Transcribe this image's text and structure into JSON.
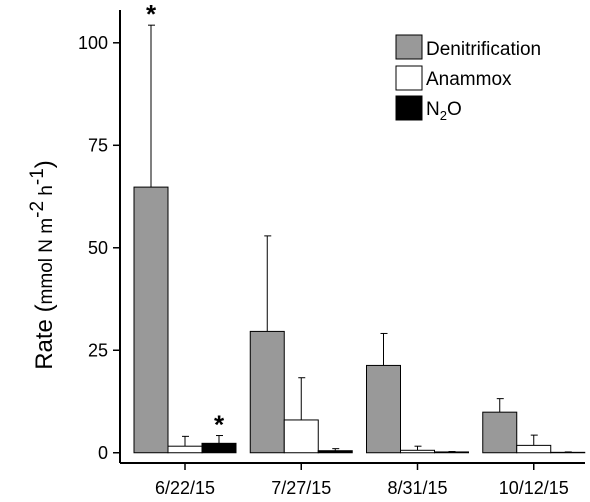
{
  "chart_data": {
    "type": "bar",
    "categories": [
      "6/22/15",
      "7/27/15",
      "8/31/15",
      "10/12/15"
    ],
    "series": [
      {
        "name": "Denitrification",
        "color": "#999999",
        "values": [
          64.8,
          29.6,
          21.3,
          9.9
        ],
        "errors": [
          39.5,
          23.3,
          7.8,
          3.3
        ]
      },
      {
        "name": "Anammox",
        "color": "#ffffff",
        "values": [
          1.6,
          8.0,
          0.6,
          1.8
        ],
        "errors": [
          2.4,
          10.3,
          1.0,
          2.5
        ]
      },
      {
        "name": "N2O",
        "color": "#000000",
        "values": [
          2.3,
          0.5,
          0.2,
          0.1
        ],
        "errors": [
          1.9,
          0.5,
          0.1,
          0.1
        ]
      }
    ],
    "significance_marks": [
      {
        "category": "6/22/15",
        "series": "Denitrification",
        "label": "*"
      },
      {
        "category": "6/22/15",
        "series": "N2O",
        "label": "*"
      }
    ],
    "ylabel": {
      "prefix": "Rate (",
      "unit_mmol": "mmol N m",
      "exp_m": "-2",
      "unit_h": " h",
      "exp_h": "-1",
      "suffix": ")"
    },
    "ylim": [
      -2.5,
      108
    ],
    "yticks": [
      0,
      25,
      50,
      75,
      100
    ],
    "legend": {
      "position": "top-right",
      "entries": [
        "Denitrification",
        "Anammox",
        "N"
      ],
      "n2o_sub": "2",
      "n2o_tail": "O"
    }
  }
}
